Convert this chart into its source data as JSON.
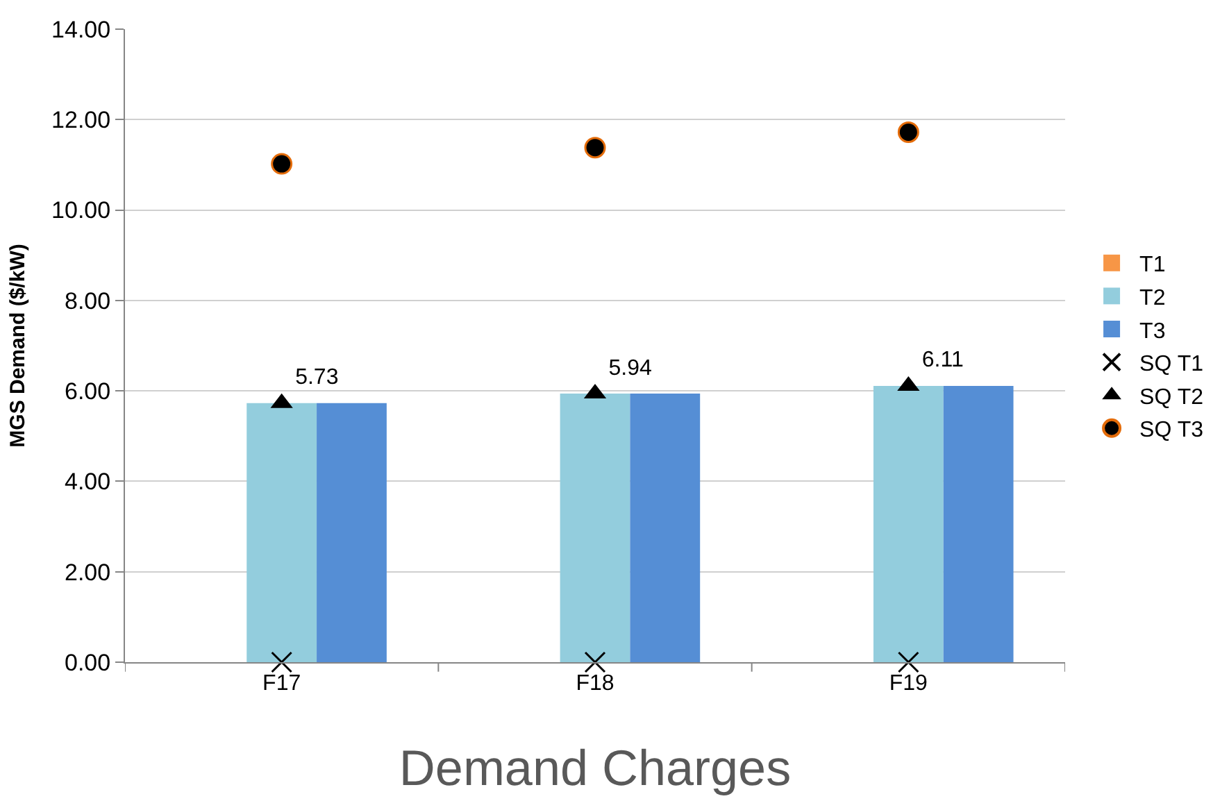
{
  "chart_data": {
    "type": "bar",
    "title": "Demand Charges",
    "ylabel": "MGS Demand ($/kW)",
    "categories": [
      "F17",
      "F18",
      "F19"
    ],
    "series": [
      {
        "name": "T1",
        "color": "#f79646",
        "values": [
          0,
          0,
          0
        ]
      },
      {
        "name": "T2",
        "color": "#93cddd",
        "values": [
          5.73,
          5.94,
          6.11
        ]
      },
      {
        "name": "T3",
        "color": "#558ed5",
        "values": [
          5.73,
          5.94,
          6.11
        ]
      },
      {
        "name": "SQ T1",
        "type": "scatter",
        "marker": "cross",
        "color": "#000000",
        "values": [
          0,
          0,
          0
        ]
      },
      {
        "name": "SQ T2",
        "type": "scatter",
        "marker": "triangle",
        "color": "#000000",
        "values": [
          5.73,
          5.94,
          6.11
        ],
        "value_labels": [
          "5.73",
          "5.94",
          "6.11"
        ]
      },
      {
        "name": "SQ T3",
        "type": "scatter",
        "marker": "circle",
        "color": "#000000",
        "values": [
          11.02,
          11.38,
          11.72
        ]
      }
    ],
    "ylim": [
      0,
      14
    ],
    "yticks": [
      {
        "value": 0,
        "label": "0.00"
      },
      {
        "value": 2,
        "label": "2.00"
      },
      {
        "value": 4,
        "label": "4.00"
      },
      {
        "value": 6,
        "label": "6.00"
      },
      {
        "value": 8,
        "label": "8.00"
      },
      {
        "value": 10,
        "label": "10.00"
      },
      {
        "value": 12,
        "label": "12.00"
      },
      {
        "value": 14,
        "label": "14.00"
      }
    ],
    "grid": "y",
    "legend": "right"
  }
}
